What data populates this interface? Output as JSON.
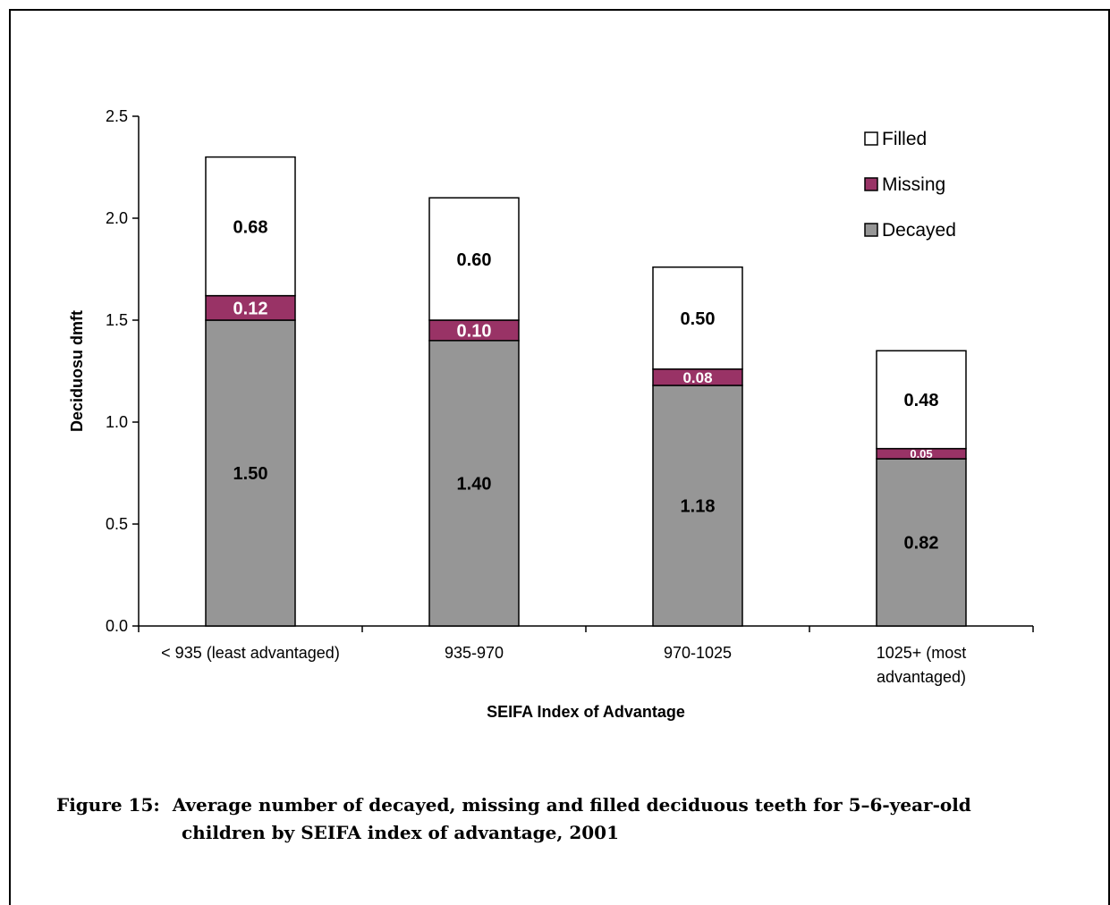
{
  "chart_data": {
    "type": "bar",
    "stacked": true,
    "categories": [
      "< 935 (least advantaged)",
      "935-970",
      "970-1025",
      "1025+ (most advantaged)"
    ],
    "category_lines": [
      [
        "< 935 (least advantaged)"
      ],
      [
        "935-970"
      ],
      [
        "970-1025"
      ],
      [
        "1025+ (most",
        "advantaged)"
      ]
    ],
    "series": [
      {
        "name": "Decayed",
        "values": [
          1.5,
          1.4,
          1.18,
          0.82
        ],
        "labels": [
          "1.50",
          "1.40",
          "1.18",
          "0.82"
        ],
        "color": "#969696",
        "label_color": "#000000"
      },
      {
        "name": "Missing",
        "values": [
          0.12,
          0.1,
          0.08,
          0.05
        ],
        "labels": [
          "0.12",
          "0.10",
          "0.08",
          "0.05"
        ],
        "color": "#993366",
        "label_color": "#ffffff"
      },
      {
        "name": "Filled",
        "values": [
          0.68,
          0.6,
          0.5,
          0.48
        ],
        "labels": [
          "0.68",
          "0.60",
          "0.50",
          "0.48"
        ],
        "color": "#ffffff",
        "label_color": "#000000"
      }
    ],
    "legend_order": [
      "Filled",
      "Missing",
      "Decayed"
    ],
    "legend_position": "top-right",
    "xlabel": "SEIFA Index of Advantage",
    "ylabel": "Deciduosu dmft",
    "ylim": [
      0,
      2.5
    ],
    "yticks": [
      "0.0",
      "0.5",
      "1.0",
      "1.5",
      "2.0",
      "2.5"
    ],
    "grid": false
  },
  "caption": {
    "number": "Figure 15:",
    "line1": "Average number of decayed, missing and filled deciduous teeth for 5–6-year-old",
    "line2": "children by SEIFA index of advantage, 2001"
  }
}
